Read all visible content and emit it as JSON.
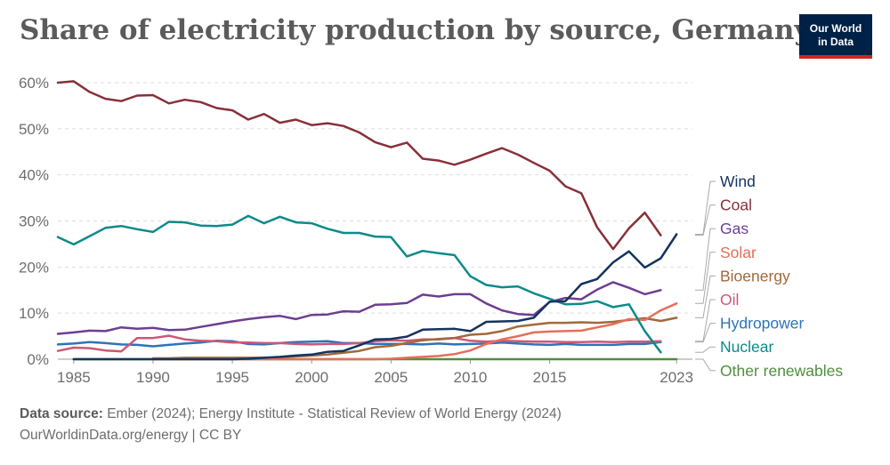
{
  "title": "Share of electricity production by source, Germany",
  "logo": {
    "line1": "Our World",
    "line2": "in Data"
  },
  "footer": {
    "source_label": "Data source:",
    "source_text": "Ember (2024); Energy Institute - Statistical Review of World Energy (2024)",
    "link": "OurWorldinData.org/energy | CC BY"
  },
  "chart_data": {
    "type": "line",
    "xlabel": "",
    "ylabel": "",
    "x_ticks": [
      1985,
      1990,
      1995,
      2000,
      2005,
      2010,
      2015,
      2023
    ],
    "x_tick_labels": [
      "1985",
      "1990",
      "1995",
      "2000",
      "2005",
      "2010",
      "2015",
      "2023"
    ],
    "y_ticks": [
      0,
      10,
      20,
      30,
      40,
      50,
      60
    ],
    "y_tick_labels": [
      "0%",
      "10%",
      "20%",
      "30%",
      "40%",
      "50%",
      "60%"
    ],
    "ylim": [
      0,
      60
    ],
    "xlim": [
      1984,
      2024
    ],
    "grid": "horizontal dashed",
    "legend_placement": "right, inline labels",
    "series": [
      {
        "name": "Wind",
        "color": "#15345f",
        "x_start": 1985,
        "values": [
          0,
          0,
          0,
          0,
          0,
          0,
          0,
          0,
          0,
          0,
          0,
          0.1,
          0.3,
          0.5,
          0.8,
          1.0,
          1.6,
          1.8,
          3.0,
          4.3,
          4.4,
          4.9,
          6.4,
          6.5,
          6.6,
          6.1,
          8.1,
          8.2,
          8.3,
          9.0,
          12.5,
          12.6,
          16.3,
          17.4,
          21.0,
          23.4,
          19.9,
          21.9,
          27.1
        ]
      },
      {
        "name": "Coal",
        "color": "#883039",
        "x_start": 1984,
        "values": [
          60.0,
          60.3,
          58.0,
          56.5,
          56.0,
          57.2,
          57.3,
          55.5,
          56.3,
          55.8,
          54.5,
          54.0,
          52.0,
          53.2,
          51.3,
          52.0,
          50.8,
          51.2,
          50.6,
          49.2,
          47.1,
          46.0,
          47.0,
          43.5,
          43.1,
          42.2,
          43.3,
          44.6,
          45.8,
          44.4,
          42.6,
          40.9,
          37.5,
          36.0,
          28.6,
          23.9,
          28.4,
          31.8,
          26.9
        ]
      },
      {
        "name": "Gas",
        "color": "#6d3e91",
        "x_start": 1984,
        "values": [
          5.5,
          5.8,
          6.2,
          6.1,
          6.9,
          6.6,
          6.8,
          6.3,
          6.4,
          7.0,
          7.6,
          8.2,
          8.7,
          9.1,
          9.4,
          8.7,
          9.6,
          9.7,
          10.4,
          10.3,
          11.8,
          11.9,
          12.2,
          14.0,
          13.6,
          14.1,
          14.1,
          12.1,
          10.6,
          9.8,
          9.6,
          12.4,
          13.3,
          13.0,
          15.1,
          16.7,
          15.5,
          14.1,
          15.0
        ]
      },
      {
        "name": "Solar",
        "color": "#e56e5a",
        "x_start": 1990,
        "values": [
          0,
          0,
          0,
          0,
          0,
          0,
          0,
          0,
          0,
          0,
          0,
          0,
          0,
          0,
          0,
          0.1,
          0.3,
          0.5,
          0.7,
          1.1,
          1.9,
          3.3,
          4.3,
          5.0,
          5.8,
          6.0,
          6.1,
          6.2,
          6.9,
          7.6,
          8.7,
          8.5,
          10.6,
          12.1
        ]
      },
      {
        "name": "Bioenergy",
        "color": "#a2693a",
        "x_start": 1990,
        "values": [
          0.2,
          0.2,
          0.3,
          0.3,
          0.3,
          0.3,
          0.3,
          0.3,
          0.4,
          0.6,
          0.8,
          1.0,
          1.4,
          1.8,
          2.6,
          2.9,
          3.5,
          4.1,
          4.4,
          4.6,
          5.3,
          5.5,
          6.1,
          7.1,
          7.5,
          7.9,
          7.9,
          8.0,
          7.9,
          8.1,
          8.5,
          8.9,
          8.3,
          9.0
        ]
      },
      {
        "name": "Oil",
        "color": "#ce5776",
        "x_start": 1984,
        "values": [
          1.8,
          2.5,
          2.4,
          1.9,
          1.7,
          4.6,
          4.6,
          5.1,
          4.3,
          4.0,
          3.9,
          3.6,
          3.6,
          3.5,
          3.5,
          3.3,
          3.2,
          3.3,
          3.3,
          3.5,
          3.9,
          4.1,
          4.0,
          4.3,
          4.3,
          4.6,
          4.0,
          3.8,
          4.0,
          3.9,
          3.8,
          3.8,
          3.7,
          3.7,
          3.8,
          3.7,
          3.8,
          3.8,
          3.9
        ]
      },
      {
        "name": "Hydropower",
        "color": "#2e73b7",
        "x_start": 1984,
        "values": [
          3.2,
          3.4,
          3.7,
          3.5,
          3.2,
          3.1,
          2.8,
          3.1,
          3.4,
          3.6,
          4.0,
          3.9,
          3.3,
          3.2,
          3.5,
          3.7,
          3.8,
          3.9,
          3.5,
          3.5,
          3.3,
          3.3,
          3.3,
          3.2,
          3.4,
          3.2,
          3.3,
          3.4,
          3.6,
          3.4,
          3.2,
          3.1,
          3.3,
          3.1,
          3.1,
          3.1,
          3.3,
          3.3,
          3.7
        ]
      },
      {
        "name": "Nuclear",
        "color": "#0e8a8a",
        "x_start": 1984,
        "values": [
          26.5,
          24.9,
          26.7,
          28.5,
          28.9,
          28.2,
          27.6,
          29.8,
          29.7,
          29.0,
          28.9,
          29.2,
          31.1,
          29.5,
          30.9,
          29.7,
          29.5,
          28.3,
          27.4,
          27.4,
          26.6,
          26.5,
          22.3,
          23.5,
          23.0,
          22.6,
          18.0,
          16.1,
          15.6,
          15.8,
          14.3,
          13.1,
          11.9,
          12.0,
          12.6,
          11.3,
          11.9,
          6.1,
          1.5
        ]
      },
      {
        "name": "Other renewables",
        "color": "#4e8f3e",
        "x_start": 1985,
        "values": [
          0,
          0,
          0,
          0,
          0,
          0,
          0,
          0,
          0,
          0,
          0,
          0,
          0,
          0,
          0,
          0,
          0,
          0,
          0,
          0,
          0,
          0,
          0,
          0,
          0,
          0,
          0,
          0,
          0,
          0,
          0,
          0,
          0,
          0,
          0,
          0,
          0,
          0,
          0
        ]
      }
    ]
  }
}
